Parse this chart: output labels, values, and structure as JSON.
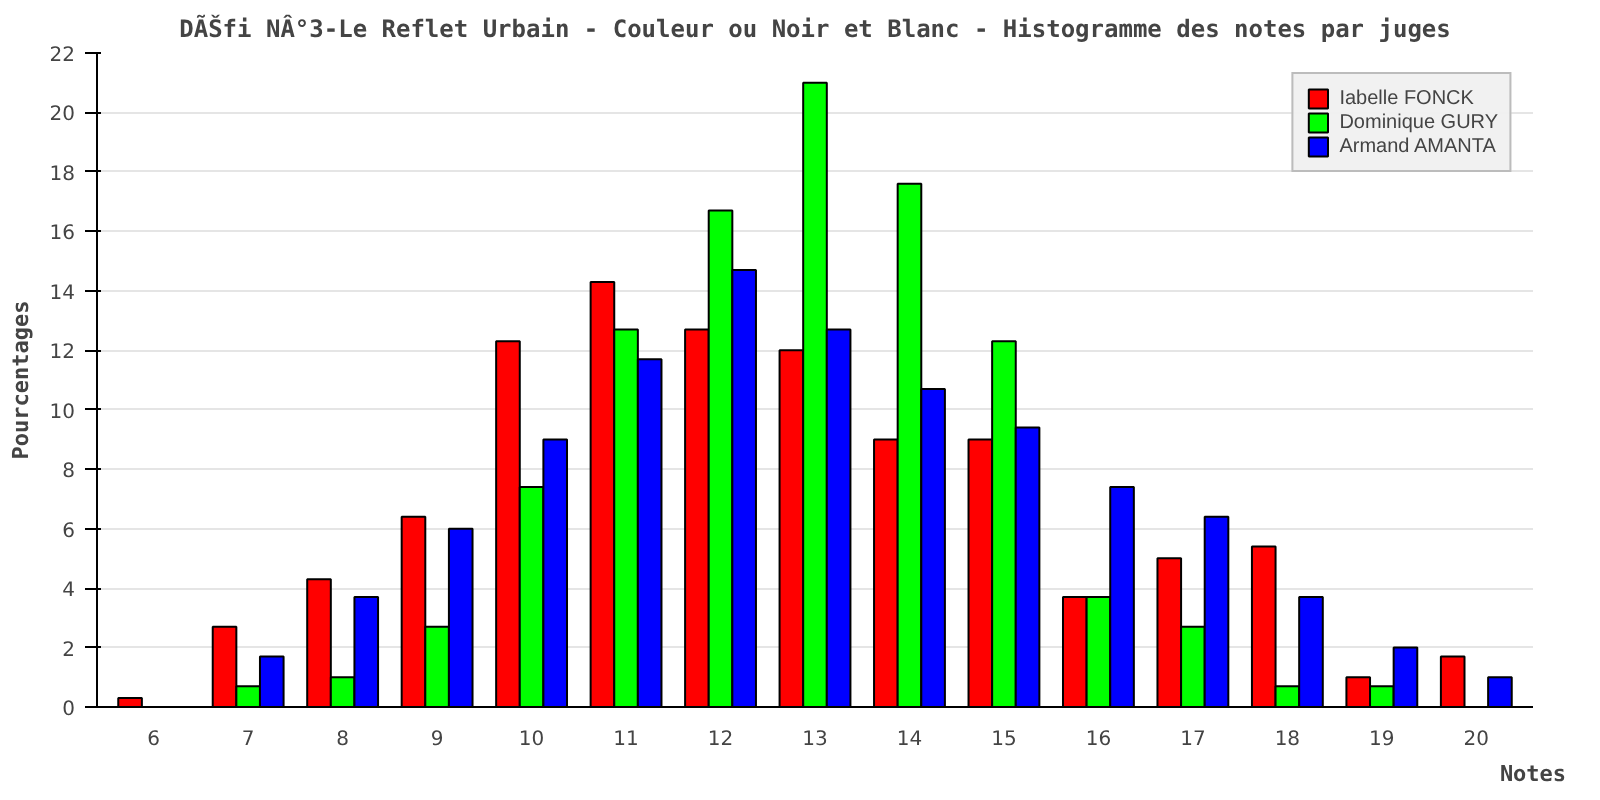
{
  "chart_data": {
    "type": "bar",
    "title": "DÃŠfi NÂ°3-Le Reflet Urbain - Couleur ou Noir et Blanc - Histogramme des notes par juges",
    "xlabel": "Notes",
    "ylabel": "Pourcentages",
    "categories": [
      "6",
      "7",
      "8",
      "9",
      "10",
      "11",
      "12",
      "13",
      "14",
      "15",
      "16",
      "17",
      "18",
      "19",
      "20"
    ],
    "series": [
      {
        "name": "Iabelle FONCK",
        "color": "#ff0000",
        "values": [
          0.3,
          2.7,
          4.3,
          6.4,
          12.3,
          14.3,
          12.7,
          12.0,
          9.0,
          9.0,
          3.7,
          5.0,
          5.4,
          1.0,
          1.7
        ]
      },
      {
        "name": "Dominique GURY",
        "color": "#00ff00",
        "values": [
          null,
          0.7,
          1.0,
          2.7,
          7.4,
          12.7,
          16.7,
          21.0,
          17.6,
          12.3,
          3.7,
          2.7,
          0.7,
          0.7,
          null
        ]
      },
      {
        "name": "Armand AMANTA",
        "color": "#0000ff",
        "values": [
          null,
          1.7,
          3.7,
          6.0,
          9.0,
          11.7,
          14.7,
          12.7,
          10.7,
          9.4,
          7.4,
          6.4,
          3.7,
          2.0,
          1.0
        ]
      }
    ],
    "ylim": [
      0,
      22
    ],
    "yticks": [
      0,
      2,
      4,
      6,
      8,
      10,
      12,
      14,
      16,
      18,
      20,
      22
    ],
    "grid": "y",
    "legend": "top right"
  }
}
